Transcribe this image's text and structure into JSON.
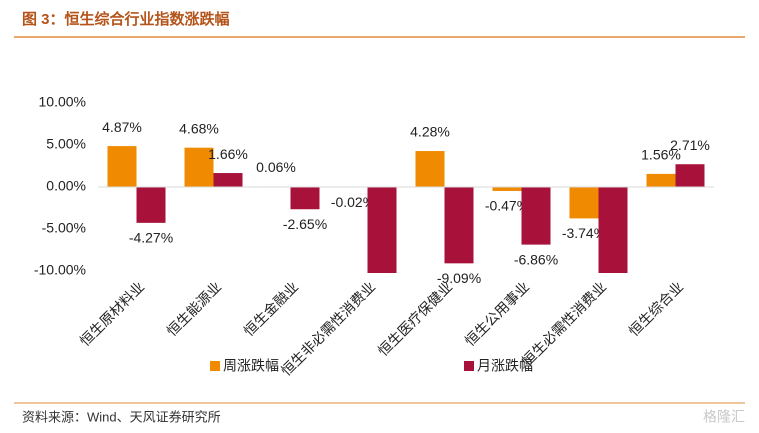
{
  "header": {
    "title": "图 3：恒生综合行业指数涨跌幅"
  },
  "chart_data": {
    "type": "bar",
    "categories": [
      "恒生原材料业",
      "恒生能源业",
      "恒生金融业",
      "恒生非必需性消费业",
      "恒生医疗保健业",
      "恒生公用事业",
      "恒生必需性消费业",
      "恒生综合业"
    ],
    "series": [
      {
        "name": "周涨跌幅",
        "color": "#f08a00",
        "values": [
          4.87,
          4.68,
          0.06,
          -0.02,
          4.28,
          -0.47,
          -3.74,
          1.56
        ],
        "value_labels": [
          "4.87%",
          "4.68%",
          "0.06%",
          "-0.02%",
          "4.28%",
          "-0.47%",
          "-3.74%",
          "1.56%"
        ]
      },
      {
        "name": "月涨跌幅",
        "color": "#a8123a",
        "values": [
          -4.27,
          1.66,
          -2.65,
          -10.24,
          -9.09,
          -6.86,
          -10.24,
          2.71
        ],
        "value_labels": [
          "-4.27%",
          "1.66%",
          "-2.65%",
          null,
          "-9.09%",
          "-6.86%",
          null,
          "2.71%"
        ]
      }
    ],
    "ylim": [
      -10.24,
      10
    ],
    "yticks": [
      {
        "value": 10,
        "label": "10.00%"
      },
      {
        "value": 5,
        "label": "5.00%"
      },
      {
        "value": 0,
        "label": "0.00%"
      },
      {
        "value": -5,
        "label": "-5.00%"
      },
      {
        "value": -10,
        "label": "-10.00%"
      }
    ],
    "legend": "bottom"
  },
  "footer": {
    "source": "资料来源：Wind、天风证券研究所",
    "watermark": "格隆汇"
  }
}
